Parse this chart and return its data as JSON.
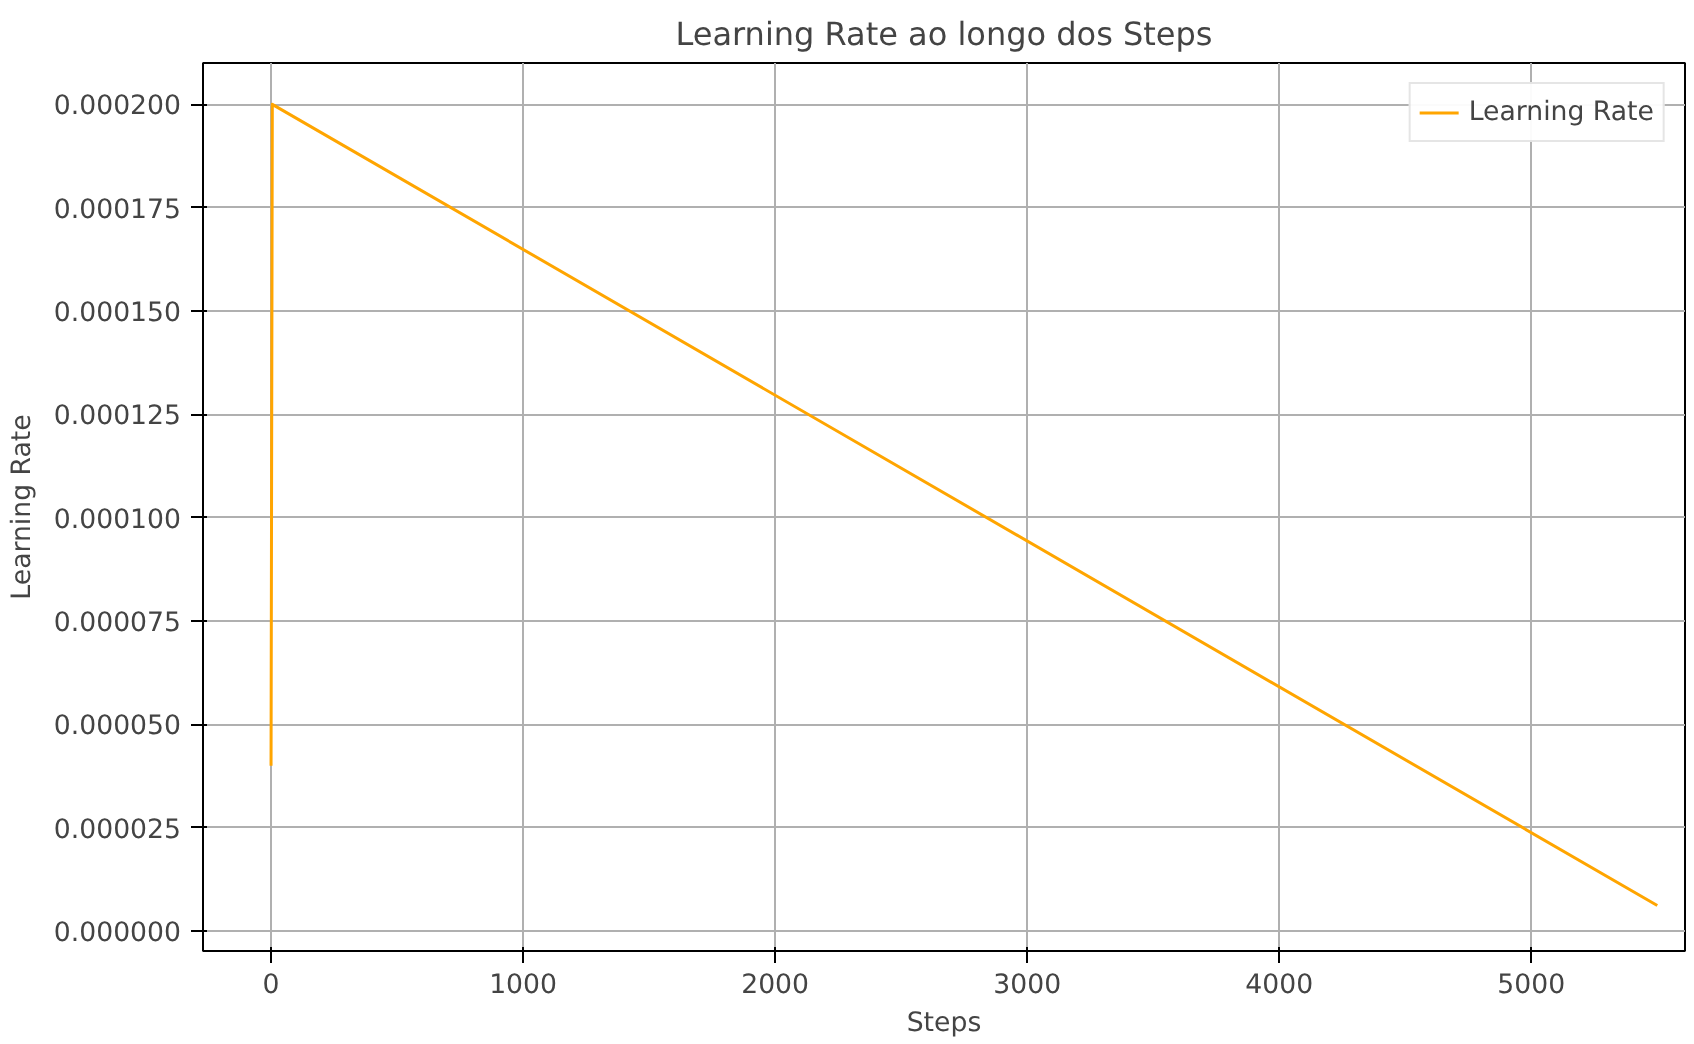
{
  "chart_data": {
    "type": "line",
    "title": "Learning Rate ao longo dos Steps",
    "xlabel": "Steps",
    "ylabel": "Learning Rate",
    "series": [
      {
        "name": "Learning Rate",
        "color": "#ffa500",
        "x": [
          0,
          5,
          5500
        ],
        "values": [
          4e-05,
          0.0002,
          6.2e-06
        ]
      }
    ],
    "xlim": [
      -270,
      5610
    ],
    "ylim": [
      -4.8e-06,
      0.00021
    ],
    "xticks": [
      0,
      1000,
      2000,
      3000,
      4000,
      5000
    ],
    "yticks": [
      {
        "value": 0,
        "label": "0.000000"
      },
      {
        "value": 2.5e-05,
        "label": "0.000025"
      },
      {
        "value": 5e-05,
        "label": "0.000050"
      },
      {
        "value": 7.5e-05,
        "label": "0.000075"
      },
      {
        "value": 0.0001,
        "label": "0.000100"
      },
      {
        "value": 0.000125,
        "label": "0.000125"
      },
      {
        "value": 0.00015,
        "label": "0.000150"
      },
      {
        "value": 0.000175,
        "label": "0.000175"
      },
      {
        "value": 0.0002,
        "label": "0.000200"
      }
    ],
    "grid": true,
    "legend": "top right"
  }
}
